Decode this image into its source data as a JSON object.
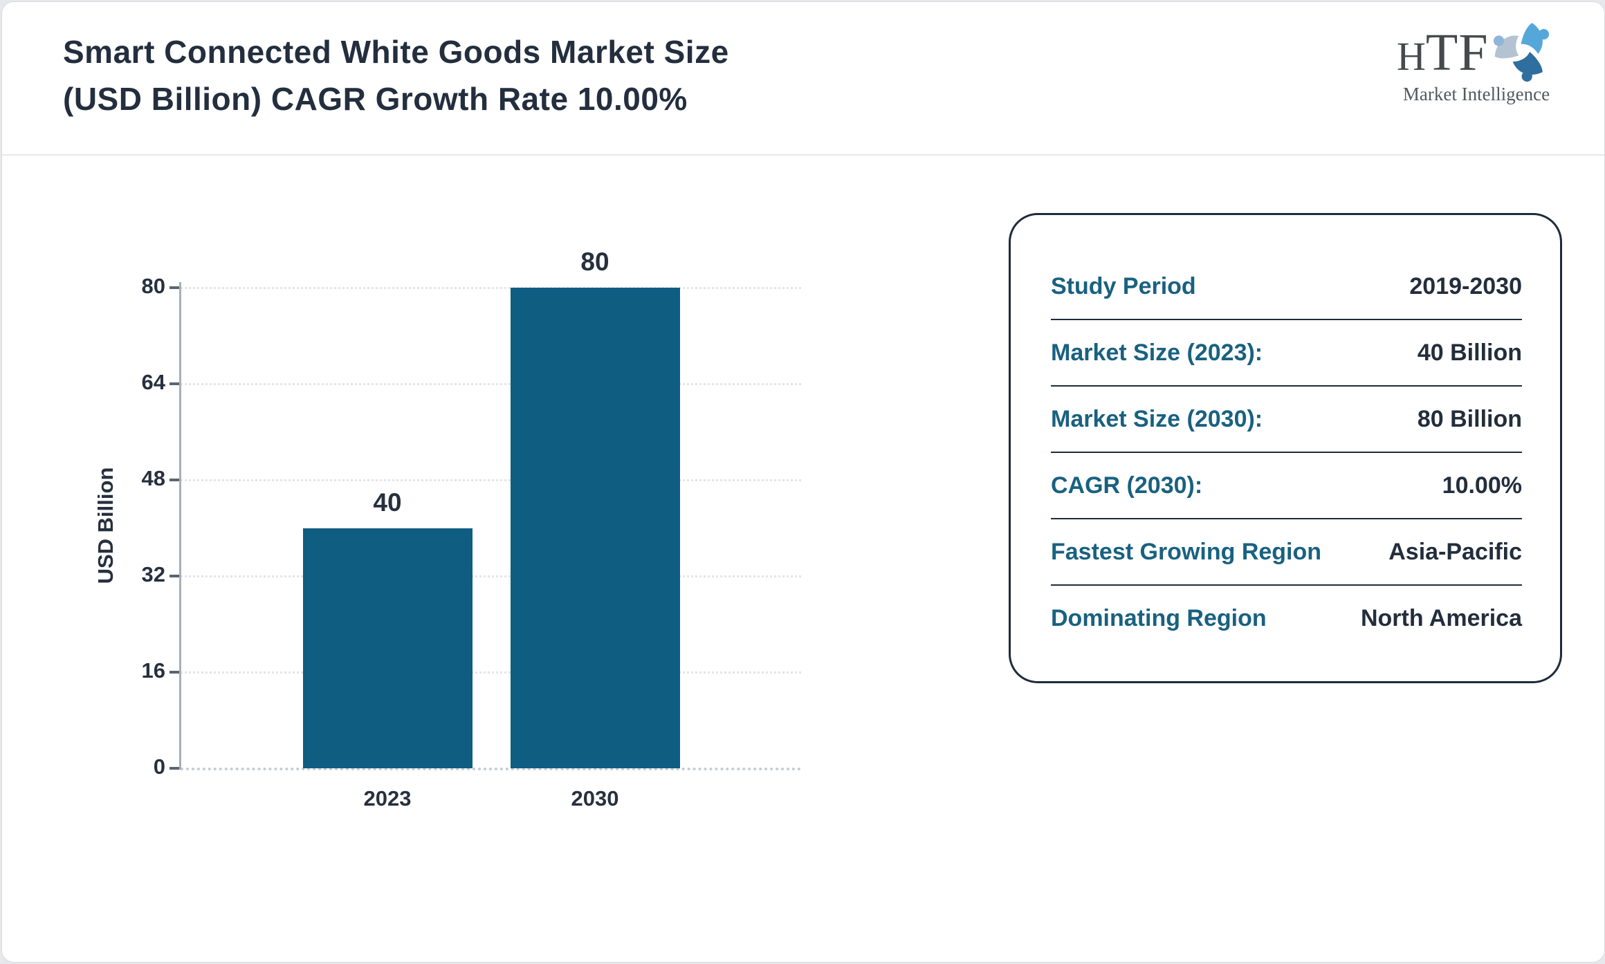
{
  "header": {
    "title_line1": "Smart Connected White Goods Market Size",
    "title_line2": "(USD Billion) CAGR Growth Rate 10.00%",
    "logo": {
      "h": "H",
      "tf": "TF",
      "subtitle": "Market Intelligence",
      "icon": "three-figures-swirl-icon",
      "icon_colors": [
        "#55a7da",
        "#2f6f9f",
        "#b4c3d2"
      ]
    }
  },
  "chart_data": {
    "type": "bar",
    "title": "Smart Connected White Goods Market Size (USD Billion) CAGR Growth Rate 10.00%",
    "categories": [
      "2023",
      "2030"
    ],
    "values": [
      40,
      80
    ],
    "value_labels": [
      "40",
      "80"
    ],
    "xlabel": "",
    "ylabel": "USD Billion",
    "yticks": [
      0,
      16,
      32,
      48,
      64,
      80
    ],
    "ylim": [
      0,
      80
    ],
    "grid": true,
    "legend": "none",
    "bar_color": "#0f5d81"
  },
  "info_panel": {
    "rows": [
      {
        "label": "Study Period",
        "value": "2019-2030"
      },
      {
        "label": "Market Size (2023):",
        "value": "40 Billion"
      },
      {
        "label": "Market Size (2030):",
        "value": "80 Billion"
      },
      {
        "label": "CAGR (2030):",
        "value": "10.00%"
      },
      {
        "label": "Fastest Growing Region",
        "value": "Asia-Pacific"
      },
      {
        "label": "Dominating Region",
        "value": "North America"
      }
    ],
    "label_color": "#196180",
    "value_color": "#232e3c"
  }
}
